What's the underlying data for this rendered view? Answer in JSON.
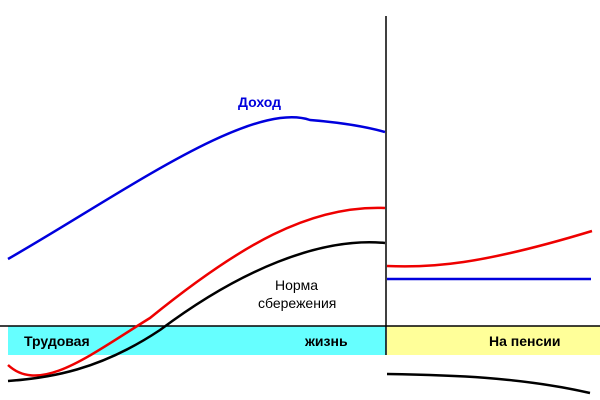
{
  "labels": {
    "income": "Доход",
    "saving_rate_line1": "Норма",
    "saving_rate_line2": "сбережения",
    "working_life_left": "Трудовая",
    "working_life_right": "жизнь",
    "retirement": "На пенсии"
  },
  "colors": {
    "income": "#0000dd",
    "red_curve": "#ee0000",
    "black_curve": "#000000",
    "working_band": "#66ffff",
    "retirement_band": "#ffff99",
    "axis": "#000000",
    "income_label": "#0000dd",
    "text": "#000000"
  }
}
